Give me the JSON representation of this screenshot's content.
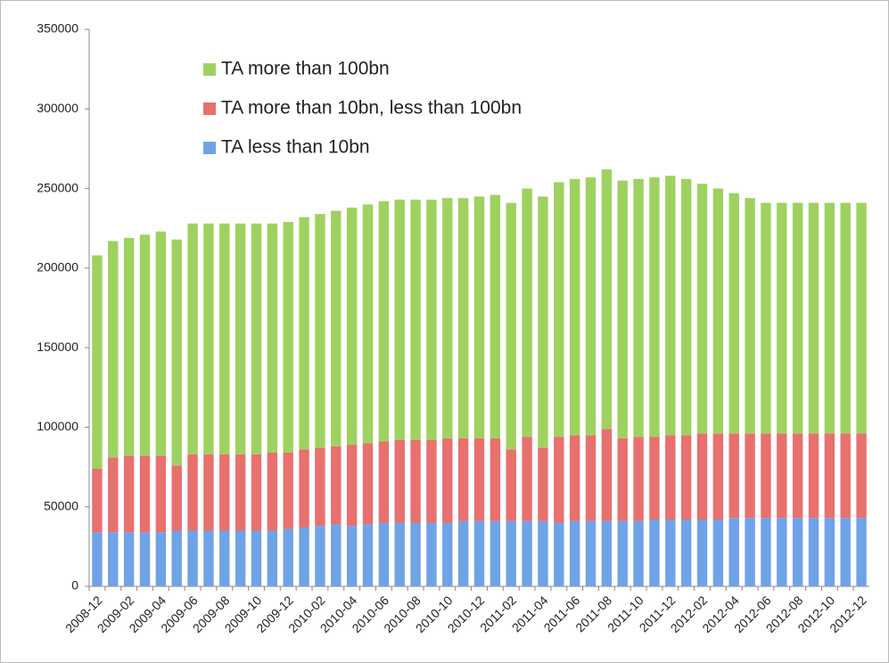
{
  "chart_data": {
    "type": "stacked_bar",
    "categories": [
      "2008-12",
      null,
      "2009-02",
      null,
      "2009-04",
      null,
      "2009-06",
      null,
      "2009-08",
      null,
      "2009-10",
      null,
      "2009-12",
      null,
      "2010-02",
      null,
      "2010-04",
      null,
      "2010-06",
      null,
      "2010-08",
      null,
      "2010-10",
      null,
      "2010-12",
      null,
      "2011-02",
      null,
      "2011-04",
      null,
      "2011-06",
      null,
      "2011-08",
      null,
      "2011-10",
      null,
      "2011-12",
      null,
      "2012-02",
      null,
      "2012-04",
      null,
      "2012-06",
      null,
      "2012-08",
      null,
      "2012-10",
      null,
      "2012-12"
    ],
    "series": [
      {
        "name": "TA less than 10bn",
        "color": "#6fa3e6",
        "values": [
          34000,
          34000,
          34000,
          34000,
          34000,
          35000,
          35000,
          35000,
          35000,
          35000,
          35000,
          35000,
          36000,
          37000,
          38000,
          39000,
          38000,
          39000,
          40000,
          40000,
          40000,
          40000,
          40000,
          41000,
          41000,
          41000,
          41000,
          41000,
          41000,
          40000,
          41000,
          41000,
          41000,
          41000,
          41000,
          42000,
          42000,
          42000,
          42000,
          42000,
          43000,
          43000,
          43000,
          43000,
          43000,
          43000,
          43000,
          43000,
          43000
        ]
      },
      {
        "name": "TA more than 10bn, less than 100bn",
        "color": "#e8706e",
        "values": [
          40000,
          47000,
          48000,
          48000,
          48000,
          41000,
          48000,
          48000,
          48000,
          48000,
          48000,
          49000,
          48000,
          49000,
          49000,
          49000,
          51000,
          51000,
          51000,
          52000,
          52000,
          52000,
          53000,
          52000,
          52000,
          52000,
          45000,
          53000,
          46000,
          54000,
          54000,
          54000,
          58000,
          52000,
          53000,
          52000,
          53000,
          53000,
          54000,
          54000,
          53000,
          53000,
          53000,
          53000,
          53000,
          53000,
          53000,
          53000,
          53000
        ]
      },
      {
        "name": "TA more than 100bn",
        "color": "#9fd160",
        "values": [
          134000,
          136000,
          137000,
          139000,
          141000,
          142000,
          145000,
          145000,
          145000,
          145000,
          145000,
          144000,
          145000,
          146000,
          147000,
          148000,
          149000,
          150000,
          151000,
          151000,
          151000,
          151000,
          151000,
          151000,
          152000,
          153000,
          155000,
          156000,
          158000,
          160000,
          161000,
          162000,
          163000,
          162000,
          162000,
          163000,
          163000,
          161000,
          157000,
          154000,
          151000,
          148000,
          145000,
          145000,
          145000,
          145000,
          145000,
          145000,
          145000
        ]
      }
    ],
    "ylim": [
      0,
      350000
    ],
    "yticks": [
      0,
      50000,
      100000,
      150000,
      200000,
      250000,
      300000,
      350000
    ],
    "grid": false,
    "legend": "upper-left"
  }
}
